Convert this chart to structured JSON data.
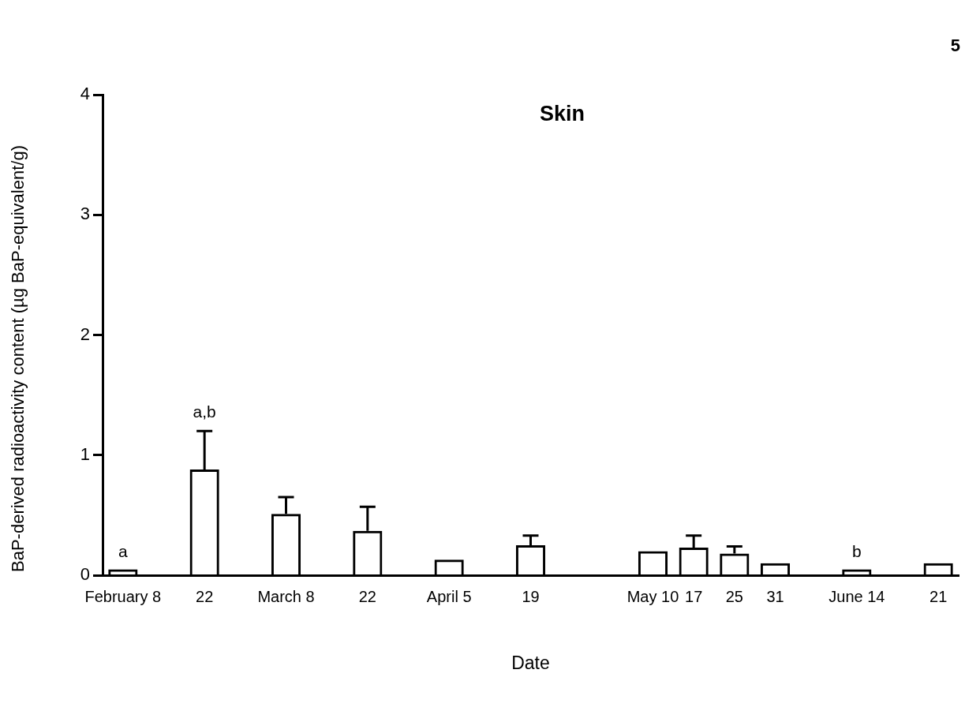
{
  "chart_data": {
    "type": "bar",
    "title": "Skin",
    "xlabel": "Date",
    "ylabel": "BaP-derived radioactivity content (µg BaP-equivalent/g)",
    "categories": [
      "February 8",
      null,
      "22",
      null,
      "March 8",
      null,
      "22",
      null,
      "April 5",
      null,
      "19",
      null,
      null,
      "May 10",
      "17",
      "25",
      "31",
      null,
      "June 14",
      null,
      "21"
    ],
    "values": [
      0.05,
      null,
      0.88,
      null,
      0.51,
      null,
      0.37,
      null,
      0.13,
      null,
      0.25,
      null,
      null,
      0.2,
      0.23,
      0.18,
      0.1,
      null,
      0.05,
      null,
      0.1
    ],
    "errors": [
      null,
      null,
      [
        0.88,
        1.2
      ],
      null,
      [
        0.51,
        0.65
      ],
      null,
      [
        0.37,
        0.57
      ],
      null,
      null,
      null,
      [
        0.25,
        0.33
      ],
      null,
      null,
      null,
      [
        0.23,
        0.33
      ],
      [
        0.18,
        0.24
      ],
      null,
      null,
      null,
      null,
      null
    ],
    "color": "#000000",
    "ylim": [
      0,
      4
    ],
    "yticks": [
      0,
      1,
      2,
      3,
      4
    ],
    "grid": false,
    "legend": false,
    "annotations": [
      "a",
      "a,b",
      "b",
      "5"
    ]
  }
}
